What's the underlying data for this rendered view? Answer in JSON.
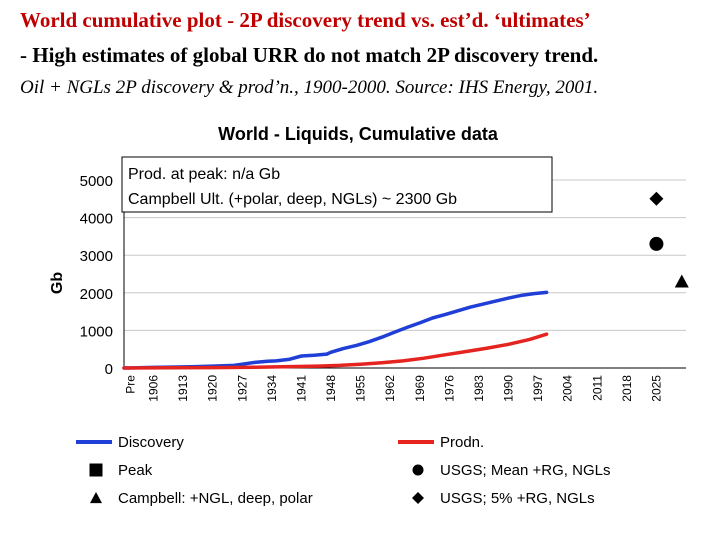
{
  "header": {
    "title": "World cumulative plot - 2P discovery trend vs. est’d. ‘ultimates’",
    "subtitle": " - High estimates of global URR do not match 2P discovery trend.",
    "caption": "Oil + NGLs 2P discovery & prod’n., 1900-2000. Source: IHS Energy, 2001."
  },
  "chart_data": {
    "type": "line",
    "title": "World  -  Liquids, Cumulative data",
    "ylabel": "Gb",
    "xlabel": "",
    "ylim": [
      0,
      5000
    ],
    "yticks": [
      0,
      1000,
      2000,
      3000,
      4000,
      5000
    ],
    "ytick_labels": [
      "0",
      "1000",
      "2000",
      "3000",
      "4000",
      "5000"
    ],
    "xlim": [
      1899,
      2032
    ],
    "xticks": [
      1906,
      1913,
      1920,
      1927,
      1934,
      1941,
      1948,
      1955,
      1962,
      1969,
      1976,
      1983,
      1990,
      1997,
      2004,
      2011,
      2018,
      2025
    ],
    "xtick_labels": [
      "1906",
      "1913",
      "1920",
      "1927",
      "1934",
      "1941",
      "1948",
      "1955",
      "1962",
      "1969",
      "1976",
      "1983",
      "1990",
      "1997",
      "2004",
      "2011",
      "2018",
      "2025"
    ],
    "x_first_label": "Pre",
    "grid": "horizontal",
    "info_box": {
      "line1": "Prod. at peak:   n/a Gb",
      "line2": "Campbell Ult. (+polar, deep, NGLs) ~ 2300 Gb"
    },
    "series": [
      {
        "name": "Discovery",
        "color": "#1f3fd6",
        "x": [
          1899,
          1906,
          1910,
          1915,
          1920,
          1925,
          1927,
          1930,
          1933,
          1935,
          1938,
          1941,
          1944,
          1947,
          1948,
          1951,
          1954,
          1957,
          1960,
          1963,
          1966,
          1969,
          1972,
          1975,
          1978,
          1981,
          1984,
          1987,
          1990,
          1993,
          1996,
          1999
        ],
        "values": [
          0,
          15,
          25,
          35,
          50,
          70,
          100,
          150,
          180,
          190,
          230,
          320,
          340,
          370,
          420,
          520,
          600,
          700,
          820,
          950,
          1080,
          1200,
          1330,
          1420,
          1520,
          1620,
          1700,
          1780,
          1860,
          1930,
          1980,
          2010
        ]
      },
      {
        "name": "Prodn.",
        "color": "#e52420",
        "x": [
          1899,
          1910,
          1920,
          1930,
          1940,
          1945,
          1950,
          1955,
          1960,
          1965,
          1970,
          1975,
          1980,
          1985,
          1990,
          1995,
          1999
        ],
        "values": [
          0,
          5,
          10,
          20,
          40,
          50,
          70,
          100,
          140,
          190,
          260,
          350,
          440,
          530,
          630,
          760,
          900
        ]
      }
    ],
    "markers": [
      {
        "name": "USGS; 5% +RG, NGLs",
        "shape": "diamond",
        "x": 2025,
        "value": 4500
      },
      {
        "name": "USGS; Mean +RG, NGLs",
        "shape": "circle",
        "x": 2025,
        "value": 3300
      },
      {
        "name": "Campbell: +NGL, deep, polar",
        "shape": "triangle",
        "x": 2031,
        "value": 2300
      }
    ],
    "legend": [
      {
        "label": "Discovery",
        "kind": "line",
        "color": "#1f3fd6"
      },
      {
        "label": "Prodn.",
        "kind": "line",
        "color": "#e52420"
      },
      {
        "label": "Peak",
        "kind": "square",
        "color": "#000000"
      },
      {
        "label": "USGS; Mean +RG, NGLs",
        "kind": "circle",
        "color": "#000000"
      },
      {
        "label": "Campbell: +NGL, deep, polar",
        "kind": "triangle",
        "color": "#000000"
      },
      {
        "label": "USGS; 5% +RG, NGLs",
        "kind": "diamond",
        "color": "#000000"
      }
    ]
  }
}
